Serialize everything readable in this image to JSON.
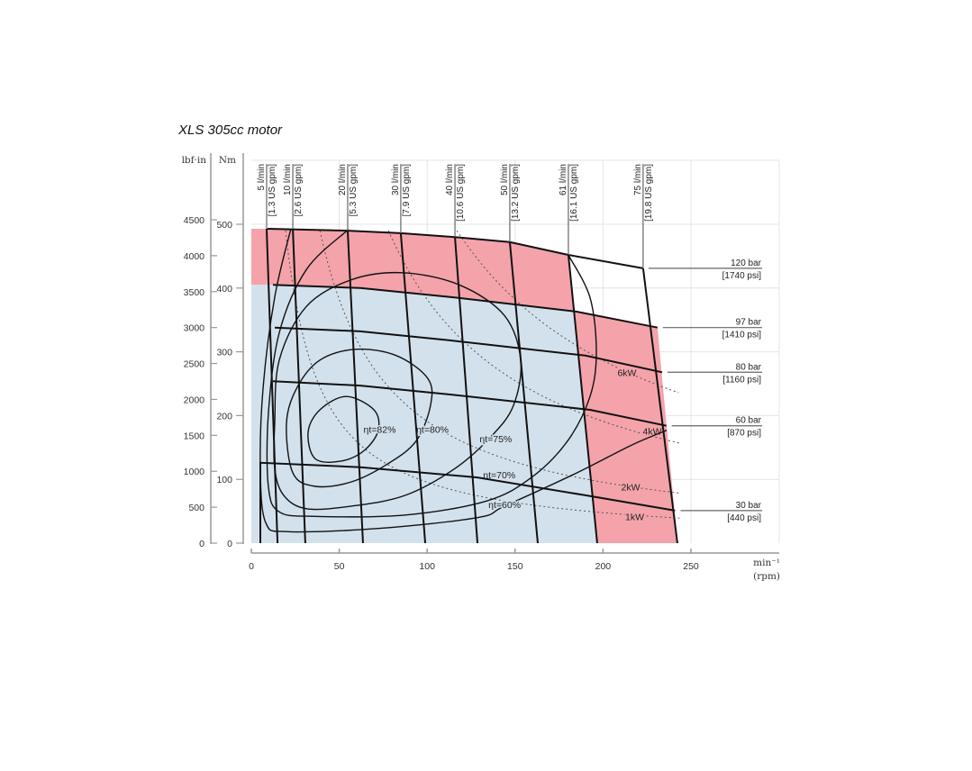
{
  "chart_data": {
    "type": "line",
    "title": "XLS 305cc motor",
    "xlabel": "min⁻¹",
    "xlabel_unit": "(rpm)",
    "ylabel_left": "lbf·in",
    "ylabel_right": "Nm",
    "xlim": [
      0,
      250
    ],
    "ylim_nm": [
      0,
      500
    ],
    "ylim_lbfin": [
      0,
      4500
    ],
    "x_ticks": [
      0,
      50,
      100,
      150,
      200,
      250
    ],
    "y_ticks_nm": [
      0,
      100,
      200,
      300,
      400,
      500
    ],
    "y_ticks_lbfin": [
      0,
      500,
      1000,
      1500,
      2000,
      2500,
      3000,
      3500,
      4000,
      4500
    ],
    "grid": true,
    "colors": {
      "intermittent": "#f4a3aa",
      "continuous": "#d3e1ec",
      "line": "#111111",
      "grid": "#e4e4e4"
    },
    "regions": [
      {
        "name": "intermittent-top",
        "color": "#f4a3aa",
        "points": [
          [
            0,
            493
          ],
          [
            9.2,
            493
          ],
          [
            54.8,
            490
          ],
          [
            85,
            486
          ],
          [
            115.8,
            480
          ],
          [
            147,
            472
          ],
          [
            180.3,
            452
          ],
          [
            184,
            363
          ],
          [
            113,
            386
          ],
          [
            62,
            400
          ],
          [
            12.3,
            405
          ],
          [
            0,
            405
          ]
        ]
      },
      {
        "name": "intermittent-right",
        "color": "#f4a3aa",
        "points": [
          [
            184,
            363
          ],
          [
            196.7,
            0
          ],
          [
            242.3,
            0
          ],
          [
            231,
            338
          ],
          [
            185,
            363
          ]
        ]
      },
      {
        "name": "continuous",
        "color": "#d3e1ec",
        "points": [
          [
            0,
            405
          ],
          [
            12.3,
            405
          ],
          [
            62,
            400
          ],
          [
            113,
            386
          ],
          [
            184,
            363
          ],
          [
            196.7,
            0
          ],
          [
            0,
            0
          ]
        ]
      }
    ],
    "pressure_lines": [
      {
        "label": "120 bar",
        "sub": "[1740 psi]",
        "points": [
          [
            9.2,
            493
          ],
          [
            54.8,
            490
          ],
          [
            85,
            486
          ],
          [
            115.8,
            480
          ],
          [
            147,
            472
          ],
          [
            180.3,
            452
          ],
          [
            222.8,
            431
          ]
        ]
      },
      {
        "label": "97 bar",
        "sub": "[1410 psi]",
        "points": [
          [
            12.3,
            405
          ],
          [
            62,
            400
          ],
          [
            113,
            386
          ],
          [
            185,
            363
          ],
          [
            231,
            338
          ]
        ]
      },
      {
        "label": "80 bar",
        "sub": "[1160 psi]",
        "points": [
          [
            13.3,
            338
          ],
          [
            62,
            332
          ],
          [
            113,
            318
          ],
          [
            190,
            294
          ],
          [
            233.6,
            268
          ]
        ]
      },
      {
        "label": "60 bar",
        "sub": "[870 psi]",
        "points": [
          [
            12.3,
            254
          ],
          [
            62,
            247
          ],
          [
            113,
            233
          ],
          [
            192.6,
            209
          ],
          [
            236,
            184
          ]
        ]
      },
      {
        "label": "30 bar",
        "sub": "[440 psi]",
        "points": [
          [
            5.1,
            0
          ],
          [
            5.1,
            126
          ],
          [
            62,
            119
          ],
          [
            128.6,
            103
          ],
          [
            190,
            75
          ],
          [
            241,
            51
          ]
        ]
      }
    ],
    "flow_lines": [
      {
        "label": "5 l/min",
        "sub": "[1.3 US gpm]",
        "top": [
          8.7,
          493
        ],
        "bottom": [
          14.9,
          0
        ]
      },
      {
        "label": "10 l/min",
        "sub": "[2.6 US gpm]",
        "top": [
          23.6,
          493
        ],
        "bottom": [
          30.7,
          0
        ]
      },
      {
        "label": "20 l/min",
        "sub": "[5.3 US gpm]",
        "top": [
          54.8,
          490
        ],
        "bottom": [
          63.5,
          0
        ]
      },
      {
        "label": "30 l/min",
        "sub": "[7.9 US gpm]",
        "top": [
          85,
          486
        ],
        "bottom": [
          98.9,
          0
        ]
      },
      {
        "label": "40 l/min",
        "sub": "[10.6 US gpm]",
        "top": [
          115.8,
          480
        ],
        "bottom": [
          128.6,
          0
        ]
      },
      {
        "label": "50 l/min",
        "sub": "[13.2 US gpm]",
        "top": [
          147,
          472
        ],
        "bottom": [
          162.9,
          0
        ]
      },
      {
        "label": "61 l/min",
        "sub": "[16.1 US gpm]",
        "top": [
          180.3,
          452
        ],
        "bottom": [
          196.7,
          0
        ]
      },
      {
        "label": "75 l/min",
        "sub": "[19.8 US gpm]",
        "top": [
          222.8,
          431
        ],
        "bottom": [
          242.3,
          0
        ]
      }
    ],
    "efficiency_contours": [
      {
        "label": "ηt=82%",
        "closed": true,
        "label_at": [
          73,
          179
        ],
        "points": [
          [
            32.3,
            174
          ],
          [
            39,
            209
          ],
          [
            54,
            230
          ],
          [
            69.7,
            209
          ],
          [
            72.2,
            177
          ],
          [
            64.5,
            146
          ],
          [
            51.7,
            129
          ],
          [
            36.4,
            132
          ]
        ]
      },
      {
        "label": "ηt=80%",
        "closed": true,
        "label_at": [
          103,
          179
        ],
        "points": [
          [
            20,
            188
          ],
          [
            26,
            244
          ],
          [
            39,
            287
          ],
          [
            59.4,
            304
          ],
          [
            82.5,
            294
          ],
          [
            100.4,
            258
          ],
          [
            101.9,
            216
          ],
          [
            93.7,
            160
          ],
          [
            77.4,
            124
          ],
          [
            56.9,
            96
          ],
          [
            36.4,
            89
          ],
          [
            23.6,
            110
          ]
        ]
      },
      {
        "label": "ηt=75%",
        "closed": true,
        "label_at": [
          139,
          164
        ],
        "points": [
          [
            13.3,
            188
          ],
          [
            15.9,
            287
          ],
          [
            31.3,
            371
          ],
          [
            56.9,
            413
          ],
          [
            86.1,
            424
          ],
          [
            118.3,
            405
          ],
          [
            143.9,
            357
          ],
          [
            153.2,
            287
          ],
          [
            149.1,
            216
          ],
          [
            136.3,
            167
          ],
          [
            115.8,
            117
          ],
          [
            87.6,
            75
          ],
          [
            56.9,
            58
          ],
          [
            31.3,
            54
          ],
          [
            18.4,
            75
          ],
          [
            13.3,
            117
          ]
        ]
      },
      {
        "label": "ηt=70%",
        "closed": false,
        "label_at": [
          141,
          107
        ],
        "points": [
          [
            55.3,
            492
          ],
          [
            31.3,
            429
          ],
          [
            15.9,
            330
          ],
          [
            9.7,
            203
          ],
          [
            9.7,
            89
          ],
          [
            15.9,
            49
          ],
          [
            36.4,
            42
          ],
          [
            87.6,
            44
          ],
          [
            133.7,
            66
          ],
          [
            159.3,
            103
          ],
          [
            179.8,
            160
          ],
          [
            192.6,
            230
          ],
          [
            196.2,
            300
          ],
          [
            192.6,
            385
          ],
          [
            180.3,
            452
          ]
        ]
      },
      {
        "label": "ηt=60%",
        "closed": false,
        "label_at": [
          144,
          61
        ],
        "points": [
          [
            22.5,
            493
          ],
          [
            13.3,
            386
          ],
          [
            6.7,
            244
          ],
          [
            5.1,
            117
          ],
          [
            8.2,
            32
          ],
          [
            21,
            18
          ],
          [
            72.2,
            23
          ],
          [
            128.6,
            40
          ],
          [
            144,
            58
          ],
          [
            185,
            110
          ],
          [
            215.7,
            153
          ],
          [
            236.2,
            177
          ]
        ]
      }
    ],
    "power_lines": [
      {
        "label": "1kW",
        "kw": 1,
        "label_at": [
          218,
          42
        ]
      },
      {
        "label": "2kW",
        "kw": 2,
        "label_at": [
          215.7,
          88
        ]
      },
      {
        "label": "4kW",
        "kw": 4,
        "label_at": [
          228,
          176
        ]
      },
      {
        "label": "6kW",
        "kw": 6,
        "label_at": [
          213.6,
          268
        ]
      }
    ]
  }
}
